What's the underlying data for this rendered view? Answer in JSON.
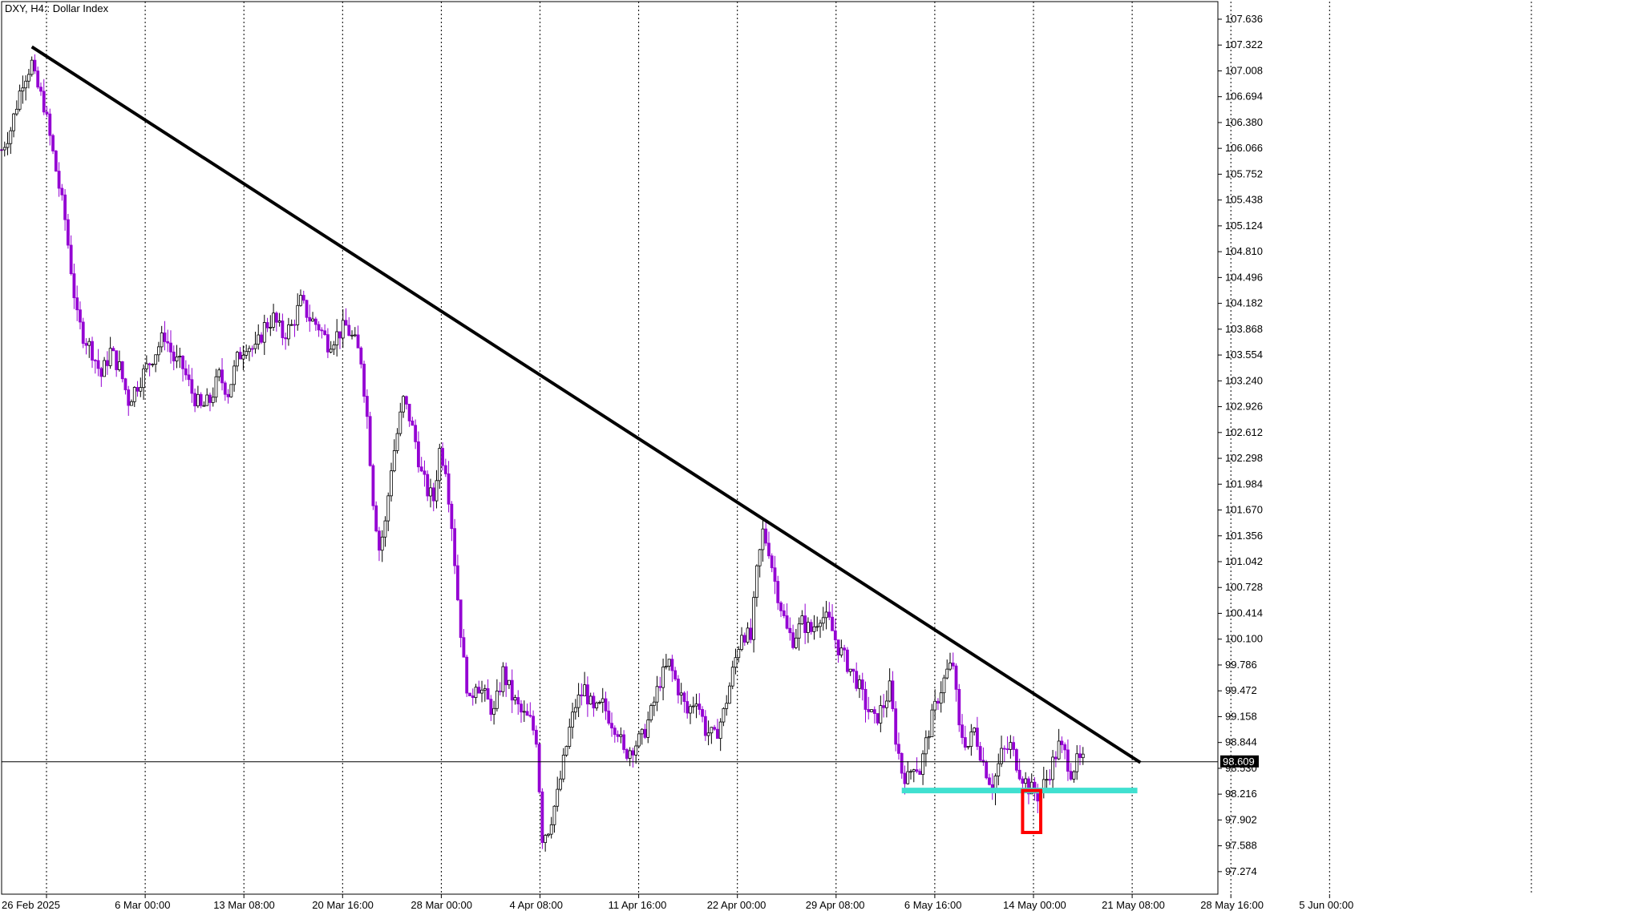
{
  "chart_data": {
    "type": "candlestick",
    "title": "DXY, H4:: Dollar Index",
    "ylim": [
      97.0,
      107.85
    ],
    "y_ticks": [
      "107.636",
      "107.322",
      "107.008",
      "106.694",
      "106.380",
      "106.066",
      "105.752",
      "105.438",
      "105.124",
      "104.810",
      "104.496",
      "104.182",
      "103.868",
      "103.554",
      "103.240",
      "102.926",
      "102.612",
      "102.298",
      "101.984",
      "101.670",
      "101.356",
      "101.042",
      "100.728",
      "100.414",
      "100.100",
      "99.786",
      "99.472",
      "99.158",
      "98.844",
      "98.530",
      "98.216",
      "97.902",
      "97.588",
      "97.274"
    ],
    "x_ticks": [
      "26 Feb 2025",
      "6 Mar 00:00",
      "13 Mar 08:00",
      "20 Mar 16:00",
      "28 Mar 00:00",
      "4 Apr 08:00",
      "11 Apr 16:00",
      "22 Apr 00:00",
      "29 Apr 08:00",
      "6 May 16:00",
      "14 May 00:00",
      "21 May 08:00",
      "28 May 16:00",
      "5 Jun 00:00"
    ],
    "x_range": [
      0,
      400
    ],
    "current_price": "98.609",
    "grid": "vertical-dotted",
    "series_path": [
      [
        0,
        106.05
      ],
      [
        3,
        106.3
      ],
      [
        7,
        106.9
      ],
      [
        10,
        107.1
      ],
      [
        11,
        106.9
      ],
      [
        14,
        106.6
      ],
      [
        16,
        106.2
      ],
      [
        19,
        105.6
      ],
      [
        21,
        105.2
      ],
      [
        23,
        104.6
      ],
      [
        25,
        104.0
      ],
      [
        27,
        103.8
      ],
      [
        30,
        103.6
      ],
      [
        33,
        103.3
      ],
      [
        36,
        103.6
      ],
      [
        39,
        103.4
      ],
      [
        42,
        103.0
      ],
      [
        45,
        103.2
      ],
      [
        48,
        103.4
      ],
      [
        51,
        103.6
      ],
      [
        54,
        103.8
      ],
      [
        57,
        103.5
      ],
      [
        60,
        103.4
      ],
      [
        63,
        103.1
      ],
      [
        66,
        102.9
      ],
      [
        69,
        103.0
      ],
      [
        72,
        103.3
      ],
      [
        75,
        103.1
      ],
      [
        78,
        103.5
      ],
      [
        81,
        103.7
      ],
      [
        84,
        103.6
      ],
      [
        87,
        103.9
      ],
      [
        90,
        104.0
      ],
      [
        93,
        103.8
      ],
      [
        96,
        103.9
      ],
      [
        99,
        104.2
      ],
      [
        102,
        104.0
      ],
      [
        105,
        103.9
      ],
      [
        108,
        103.7
      ],
      [
        111,
        103.8
      ],
      [
        114,
        103.9
      ],
      [
        117,
        103.7
      ],
      [
        119,
        103.5
      ],
      [
        121,
        102.8
      ],
      [
        123,
        101.8
      ],
      [
        125,
        101.2
      ],
      [
        127,
        101.5
      ],
      [
        129,
        102.2
      ],
      [
        131,
        102.6
      ],
      [
        133,
        103.0
      ],
      [
        135,
        102.8
      ],
      [
        137,
        102.5
      ],
      [
        139,
        102.1
      ],
      [
        141,
        101.9
      ],
      [
        143,
        101.8
      ],
      [
        145,
        102.4
      ],
      [
        147,
        102.2
      ],
      [
        149,
        101.5
      ],
      [
        151,
        100.6
      ],
      [
        153,
        99.8
      ],
      [
        155,
        99.3
      ],
      [
        157,
        99.6
      ],
      [
        160,
        99.4
      ],
      [
        163,
        99.2
      ],
      [
        166,
        99.7
      ],
      [
        169,
        99.4
      ],
      [
        172,
        99.2
      ],
      [
        175,
        99.1
      ],
      [
        177,
        98.9
      ],
      [
        179,
        97.7
      ],
      [
        181,
        97.8
      ],
      [
        184,
        98.2
      ],
      [
        186,
        98.6
      ],
      [
        188,
        99.0
      ],
      [
        190,
        99.3
      ],
      [
        193,
        99.5
      ],
      [
        196,
        99.2
      ],
      [
        199,
        99.3
      ],
      [
        202,
        99.1
      ],
      [
        204,
        99.0
      ],
      [
        206,
        98.7
      ],
      [
        209,
        98.8
      ],
      [
        212,
        98.9
      ],
      [
        215,
        99.2
      ],
      [
        218,
        99.6
      ],
      [
        221,
        99.8
      ],
      [
        224,
        99.5
      ],
      [
        227,
        99.2
      ],
      [
        230,
        99.4
      ],
      [
        233,
        99.0
      ],
      [
        236,
        98.9
      ],
      [
        239,
        99.2
      ],
      [
        242,
        99.7
      ],
      [
        245,
        100.2
      ],
      [
        248,
        100.1
      ],
      [
        250,
        100.9
      ],
      [
        252,
        101.4
      ],
      [
        254,
        101.2
      ],
      [
        256,
        100.8
      ],
      [
        258,
        100.5
      ],
      [
        260,
        100.2
      ],
      [
        262,
        100.1
      ],
      [
        265,
        100.3
      ],
      [
        268,
        100.2
      ],
      [
        271,
        100.4
      ],
      [
        274,
        100.3
      ],
      [
        277,
        100.0
      ],
      [
        280,
        99.8
      ],
      [
        283,
        99.6
      ],
      [
        286,
        99.3
      ],
      [
        289,
        99.1
      ],
      [
        292,
        99.3
      ],
      [
        294,
        99.5
      ],
      [
        296,
        98.9
      ],
      [
        298,
        98.5
      ],
      [
        300,
        98.4
      ],
      [
        302,
        98.6
      ],
      [
        304,
        98.5
      ],
      [
        307,
        99.0
      ],
      [
        310,
        99.4
      ],
      [
        313,
        99.7
      ],
      [
        315,
        99.8
      ],
      [
        317,
        99.0
      ],
      [
        320,
        98.8
      ],
      [
        322,
        99.0
      ],
      [
        325,
        98.6
      ],
      [
        328,
        98.3
      ],
      [
        331,
        98.7
      ],
      [
        334,
        98.8
      ],
      [
        337,
        98.5
      ],
      [
        340,
        98.3
      ],
      [
        343,
        98.2
      ],
      [
        346,
        98.4
      ],
      [
        348,
        98.6
      ],
      [
        350,
        98.8
      ],
      [
        352,
        98.7
      ],
      [
        354,
        98.5
      ],
      [
        356,
        98.6
      ],
      [
        358,
        98.609
      ]
    ],
    "annotations": {
      "trendline": {
        "label": "descending-trendline",
        "color": "#000000",
        "from": [
          10,
          107.3
        ],
        "to": [
          377,
          98.6
        ]
      },
      "support": {
        "label": "support-zone",
        "color": "#40E0D0",
        "from": [
          298,
          98.26
        ],
        "to": [
          376,
          98.26
        ]
      },
      "highlight_box": {
        "label": "highlight-box",
        "color": "#ff0000",
        "x_from": [
          338,
          344
        ],
        "y_range": [
          97.75,
          98.26
        ]
      }
    },
    "colors": {
      "up": "#000000",
      "down": "#9400D3",
      "grid": "#000000",
      "background": "#ffffff"
    }
  }
}
